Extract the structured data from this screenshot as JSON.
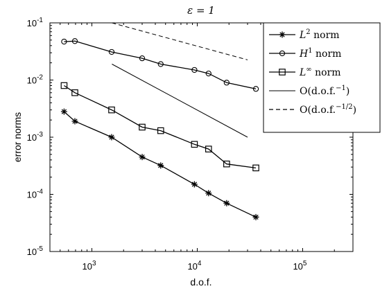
{
  "chart_data": {
    "type": "line",
    "title": "ε = 1",
    "xlabel": "d.o.f.",
    "ylabel": "error norms",
    "xscale": "log",
    "yscale": "log",
    "xlim": [
      400,
      300000
    ],
    "ylim": [
      1e-05,
      0.1
    ],
    "grid": false,
    "legend_position": "top-right",
    "x_ticks": [
      {
        "value": 1000,
        "base": "10",
        "exp": "3"
      },
      {
        "value": 10000,
        "base": "10",
        "exp": "4"
      },
      {
        "value": 100000,
        "base": "10",
        "exp": "5"
      }
    ],
    "y_ticks": [
      {
        "value": 0.1,
        "base": "10",
        "exp": "-1"
      },
      {
        "value": 0.01,
        "base": "10",
        "exp": "-2"
      },
      {
        "value": 0.001,
        "base": "10",
        "exp": "-3"
      },
      {
        "value": 0.0001,
        "base": "10",
        "exp": "-4"
      },
      {
        "value": 1e-05,
        "base": "10",
        "exp": "-5"
      }
    ],
    "series": [
      {
        "name": "L² norm",
        "marker": "star",
        "linestyle": "solid",
        "x": [
          545,
          690,
          1540,
          3000,
          4500,
          9400,
          12800,
          19000,
          36000
        ],
        "y": [
          0.0028,
          0.0019,
          0.001,
          0.00045,
          0.00032,
          0.00015,
          0.000105,
          7e-05,
          4e-05
        ]
      },
      {
        "name": "H¹ norm",
        "marker": "circle",
        "linestyle": "solid",
        "x": [
          545,
          690,
          1540,
          3000,
          4500,
          9400,
          12800,
          19000,
          36000
        ],
        "y": [
          0.047,
          0.048,
          0.031,
          0.024,
          0.019,
          0.015,
          0.013,
          0.009,
          0.007
        ]
      },
      {
        "name": "L∞ norm",
        "marker": "square",
        "linestyle": "solid",
        "x": [
          545,
          690,
          1540,
          3000,
          4500,
          9400,
          12800,
          19000,
          36000
        ],
        "y": [
          0.008,
          0.006,
          0.003,
          0.0015,
          0.0013,
          0.00075,
          0.00062,
          0.00034,
          0.00029
        ]
      },
      {
        "name": "O(d.o.f.⁻¹)",
        "marker": "none",
        "linestyle": "solid",
        "x": [
          1550,
          30000
        ],
        "y": [
          0.019,
          0.001
        ]
      },
      {
        "name": "O(d.o.f.⁻¹ᐟ²)",
        "marker": "none",
        "linestyle": "dashed",
        "x": [
          1550,
          30000
        ],
        "y": [
          0.1,
          0.0225
        ]
      }
    ],
    "legend": [
      {
        "key": "l2",
        "main": "L",
        "sup": "2",
        "tail": " norm",
        "style": "star",
        "italic": true
      },
      {
        "key": "h1",
        "main": "H",
        "sup": "1",
        "tail": " norm",
        "style": "circle",
        "italic": true
      },
      {
        "key": "linf",
        "main": "L",
        "sup": "∞",
        "tail": " norm",
        "style": "square",
        "italic": true
      },
      {
        "key": "o1",
        "main": "O(d.o.f.",
        "sup": "−1",
        "tail": ")",
        "style": "solid",
        "italic": false
      },
      {
        "key": "ohalf",
        "main": "O(d.o.f.",
        "sup": "−1/2",
        "tail": ")",
        "style": "dashed",
        "italic": false
      }
    ]
  }
}
